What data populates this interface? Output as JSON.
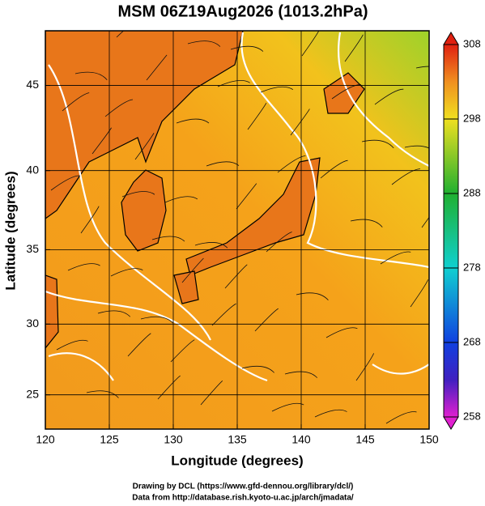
{
  "chart_data": {
    "type": "map",
    "title": "MSM 06Z19Aug2026 (1013.2hPa)",
    "x_label": "Longitude (degrees)",
    "y_label": "Latitude  (degrees)",
    "xlim": [
      120,
      150
    ],
    "xticks": [
      120,
      125,
      130,
      135,
      140,
      145,
      150
    ],
    "ylim": [
      22.5,
      48
    ],
    "yticks": [
      25,
      30,
      35,
      40,
      45
    ],
    "grid": true,
    "colorbar": {
      "lim": [
        258,
        308
      ],
      "ticks": [
        258,
        268,
        278,
        288,
        298,
        308
      ]
    },
    "footer": [
      "Drawing by DCL (https://www.gfd-dennou.org/library/dcl/)",
      "Data from http://database.rish.kyoto-u.ac.jp/arch/jmadata/"
    ]
  }
}
